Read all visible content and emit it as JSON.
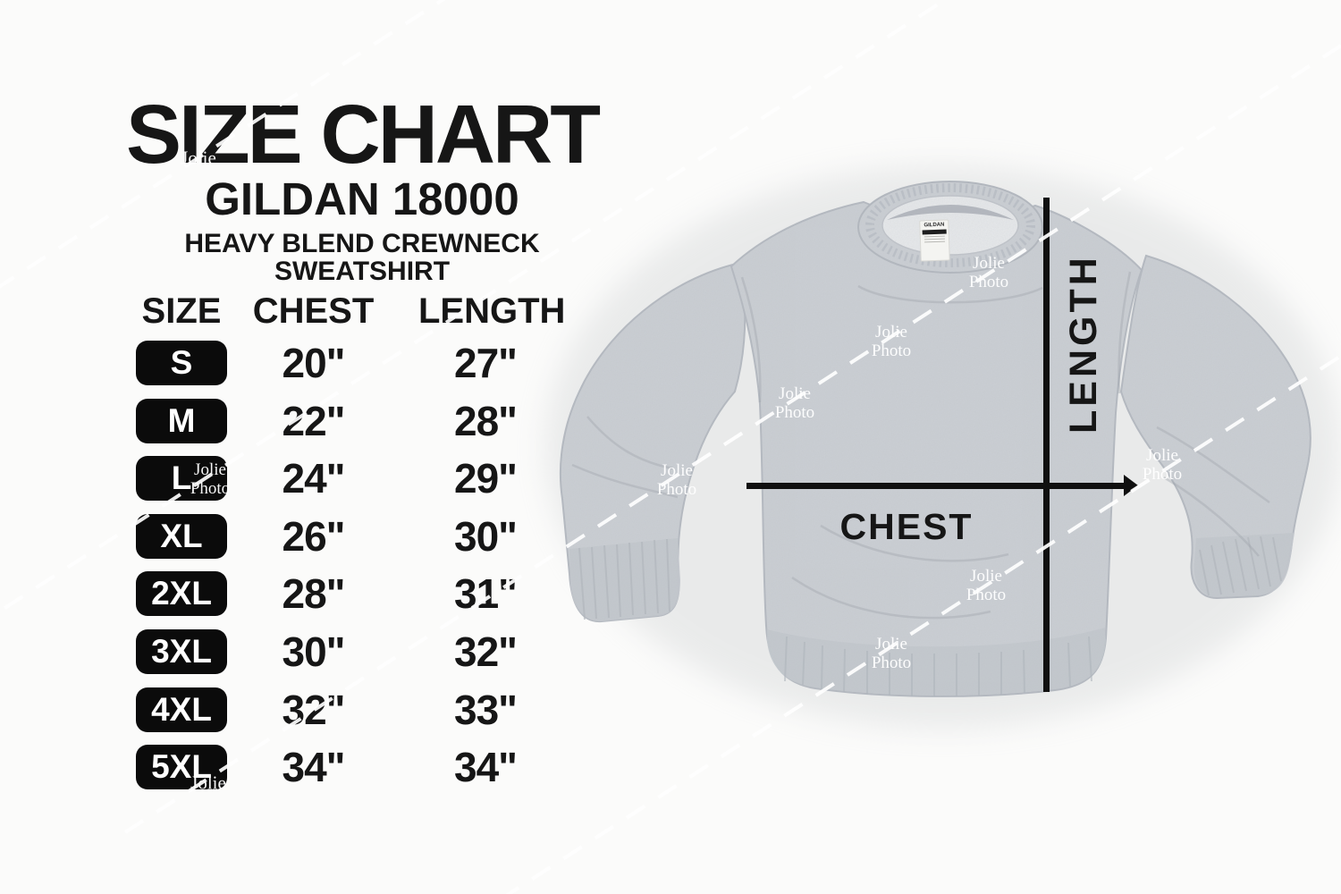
{
  "title": "SIZE CHART",
  "product": "GILDAN 18000",
  "subtitle": [
    "HEAVY BLEND CREWNECK",
    "SWEATSHIRT"
  ],
  "table": {
    "headers": [
      "SIZE",
      "CHEST",
      "LENGTH"
    ],
    "rows": [
      {
        "size": "S",
        "chest": "20\"",
        "length": "27\""
      },
      {
        "size": "M",
        "chest": "22\"",
        "length": "28\""
      },
      {
        "size": "L",
        "chest": "24\"",
        "length": "29\""
      },
      {
        "size": "XL",
        "chest": "26\"",
        "length": "30\""
      },
      {
        "size": "2XL",
        "chest": "28\"",
        "length": "31\""
      },
      {
        "size": "3XL",
        "chest": "30\"",
        "length": "32\""
      },
      {
        "size": "4XL",
        "chest": "32\"",
        "length": "33\""
      },
      {
        "size": "5XL",
        "chest": "34\"",
        "length": "34\""
      }
    ]
  },
  "diagram": {
    "length_label": "LENGTH",
    "chest_label": "CHEST",
    "tag_text": "GILDAN"
  },
  "watermark": {
    "word1": "Jolie",
    "word2": "Photo"
  },
  "colors": {
    "background": "#fbfbfa",
    "text": "#161616",
    "badge_bg": "#0b0b0b",
    "badge_text": "#ffffff",
    "garment": "#cbcfd4",
    "garment_shadow": "#b4b9c0",
    "line": "#101010",
    "watermark": "#ffffff"
  },
  "chart_data": {
    "type": "table",
    "title": "SIZE CHART",
    "product": "GILDAN 18000",
    "subtitle": "HEAVY BLEND CREWNECK SWEATSHIRT",
    "columns": [
      "SIZE",
      "CHEST",
      "LENGTH"
    ],
    "rows": [
      [
        "S",
        "20\"",
        "27\""
      ],
      [
        "M",
        "22\"",
        "28\""
      ],
      [
        "L",
        "24\"",
        "29\""
      ],
      [
        "XL",
        "26\"",
        "30\""
      ],
      [
        "2XL",
        "28\"",
        "31\""
      ],
      [
        "3XL",
        "30\"",
        "32\""
      ],
      [
        "4XL",
        "32\"",
        "33\""
      ],
      [
        "5XL",
        "34\"",
        "34\""
      ]
    ],
    "units": "inches",
    "notes": "Flat-lay sweatshirt photo annotated with LENGTH (vertical) and CHEST (horizontal) measurement lines"
  }
}
